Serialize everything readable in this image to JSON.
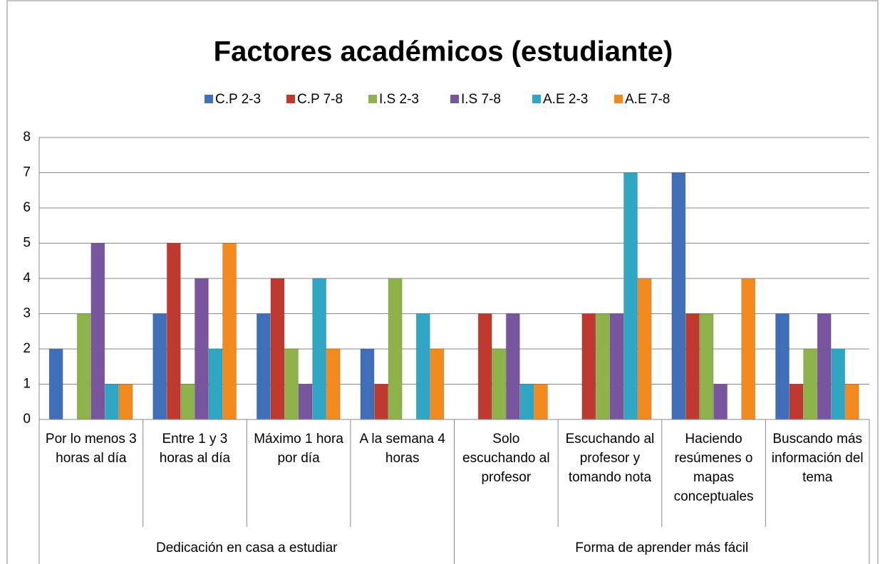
{
  "chart_data": {
    "type": "bar",
    "title": "Factores académicos (estudiante)",
    "groups": [
      {
        "name": "Dedicación en casa a estudiar",
        "categories": [
          "Por lo menos 3 horas al día",
          "Entre 1 y 3 horas al día",
          "Máximo 1 hora por día",
          "A la semana 4 horas"
        ]
      },
      {
        "name": "Forma de aprender más fácil",
        "categories": [
          "Solo escuchando al profesor",
          "Escuchando al profesor y tomando nota",
          "Haciendo resúmenes o mapas conceptuales",
          "Buscando más información del tema"
        ]
      }
    ],
    "series": [
      {
        "name": "C.P 2-3",
        "color": "#3f6fb8",
        "values": [
          2,
          3,
          3,
          2,
          0,
          0,
          7,
          3
        ]
      },
      {
        "name": "C.P 7-8",
        "color": "#c0392f",
        "values": [
          0,
          5,
          4,
          1,
          3,
          3,
          3,
          1
        ]
      },
      {
        "name": "I.S 2-3",
        "color": "#8db34a",
        "values": [
          3,
          1,
          2,
          4,
          2,
          3,
          3,
          2
        ]
      },
      {
        "name": "I.S 7-8",
        "color": "#7a559f",
        "values": [
          5,
          4,
          1,
          0,
          3,
          3,
          1,
          3
        ]
      },
      {
        "name": "A.E 2-3",
        "color": "#2fa6c4",
        "values": [
          1,
          2,
          4,
          3,
          1,
          7,
          0,
          2
        ]
      },
      {
        "name": "A.E 7-8",
        "color": "#f38a1e",
        "values": [
          1,
          5,
          2,
          2,
          1,
          4,
          4,
          1
        ]
      }
    ],
    "ylim": [
      0,
      8
    ],
    "yticks": [
      0,
      1,
      2,
      3,
      4,
      5,
      6,
      7,
      8
    ],
    "grid": true,
    "legend": "top"
  }
}
